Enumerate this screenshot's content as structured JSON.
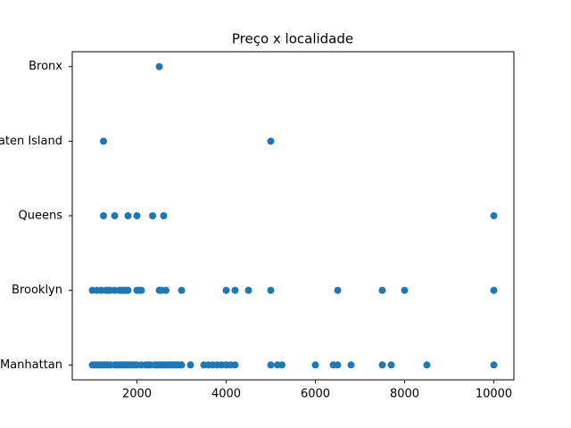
{
  "chart_data": {
    "type": "scatter",
    "title": "Preço x localidade",
    "categories": [
      "Manhattan",
      "Brooklyn",
      "Queens",
      "Staten Island",
      "Bronx"
    ],
    "color": "#1f77b4",
    "xlim": [
      550,
      10450
    ],
    "xticks": [
      2000,
      4000,
      6000,
      8000,
      10000
    ],
    "x": [
      1000,
      1050,
      1100,
      1150,
      1200,
      1250,
      1300,
      1350,
      1400,
      1500,
      1550,
      1600,
      1650,
      1700,
      1750,
      1800,
      1850,
      1900,
      1950,
      2000,
      2100,
      2200,
      2250,
      2300,
      2400,
      2450,
      2500,
      2550,
      2600,
      2650,
      2700,
      2750,
      2800,
      2850,
      2900,
      2950,
      3000,
      3200,
      3500,
      3600,
      3700,
      3800,
      3900,
      4000,
      4100,
      4200,
      5000,
      5150,
      5250,
      6000,
      6400,
      6500,
      6800,
      7500,
      7700,
      8500,
      10000,
      1000,
      1100,
      1200,
      1300,
      1350,
      1400,
      1500,
      1600,
      1650,
      1700,
      1750,
      1800,
      2000,
      2050,
      2100,
      2500,
      2550,
      2650,
      3000,
      4000,
      4200,
      4500,
      5000,
      6500,
      7500,
      8000,
      10000,
      1250,
      1500,
      1800,
      2000,
      2350,
      2600,
      10000,
      1250,
      5000,
      2500
    ],
    "y": [
      "Manhattan",
      "Manhattan",
      "Manhattan",
      "Manhattan",
      "Manhattan",
      "Manhattan",
      "Manhattan",
      "Manhattan",
      "Manhattan",
      "Manhattan",
      "Manhattan",
      "Manhattan",
      "Manhattan",
      "Manhattan",
      "Manhattan",
      "Manhattan",
      "Manhattan",
      "Manhattan",
      "Manhattan",
      "Manhattan",
      "Manhattan",
      "Manhattan",
      "Manhattan",
      "Manhattan",
      "Manhattan",
      "Manhattan",
      "Manhattan",
      "Manhattan",
      "Manhattan",
      "Manhattan",
      "Manhattan",
      "Manhattan",
      "Manhattan",
      "Manhattan",
      "Manhattan",
      "Manhattan",
      "Manhattan",
      "Manhattan",
      "Manhattan",
      "Manhattan",
      "Manhattan",
      "Manhattan",
      "Manhattan",
      "Manhattan",
      "Manhattan",
      "Manhattan",
      "Manhattan",
      "Manhattan",
      "Manhattan",
      "Manhattan",
      "Manhattan",
      "Manhattan",
      "Manhattan",
      "Manhattan",
      "Manhattan",
      "Manhattan",
      "Manhattan",
      "Brooklyn",
      "Brooklyn",
      "Brooklyn",
      "Brooklyn",
      "Brooklyn",
      "Brooklyn",
      "Brooklyn",
      "Brooklyn",
      "Brooklyn",
      "Brooklyn",
      "Brooklyn",
      "Brooklyn",
      "Brooklyn",
      "Brooklyn",
      "Brooklyn",
      "Brooklyn",
      "Brooklyn",
      "Brooklyn",
      "Brooklyn",
      "Brooklyn",
      "Brooklyn",
      "Brooklyn",
      "Brooklyn",
      "Brooklyn",
      "Brooklyn",
      "Brooklyn",
      "Brooklyn",
      "Queens",
      "Queens",
      "Queens",
      "Queens",
      "Queens",
      "Queens",
      "Queens",
      "Staten Island",
      "Staten Island",
      "Bronx"
    ]
  }
}
